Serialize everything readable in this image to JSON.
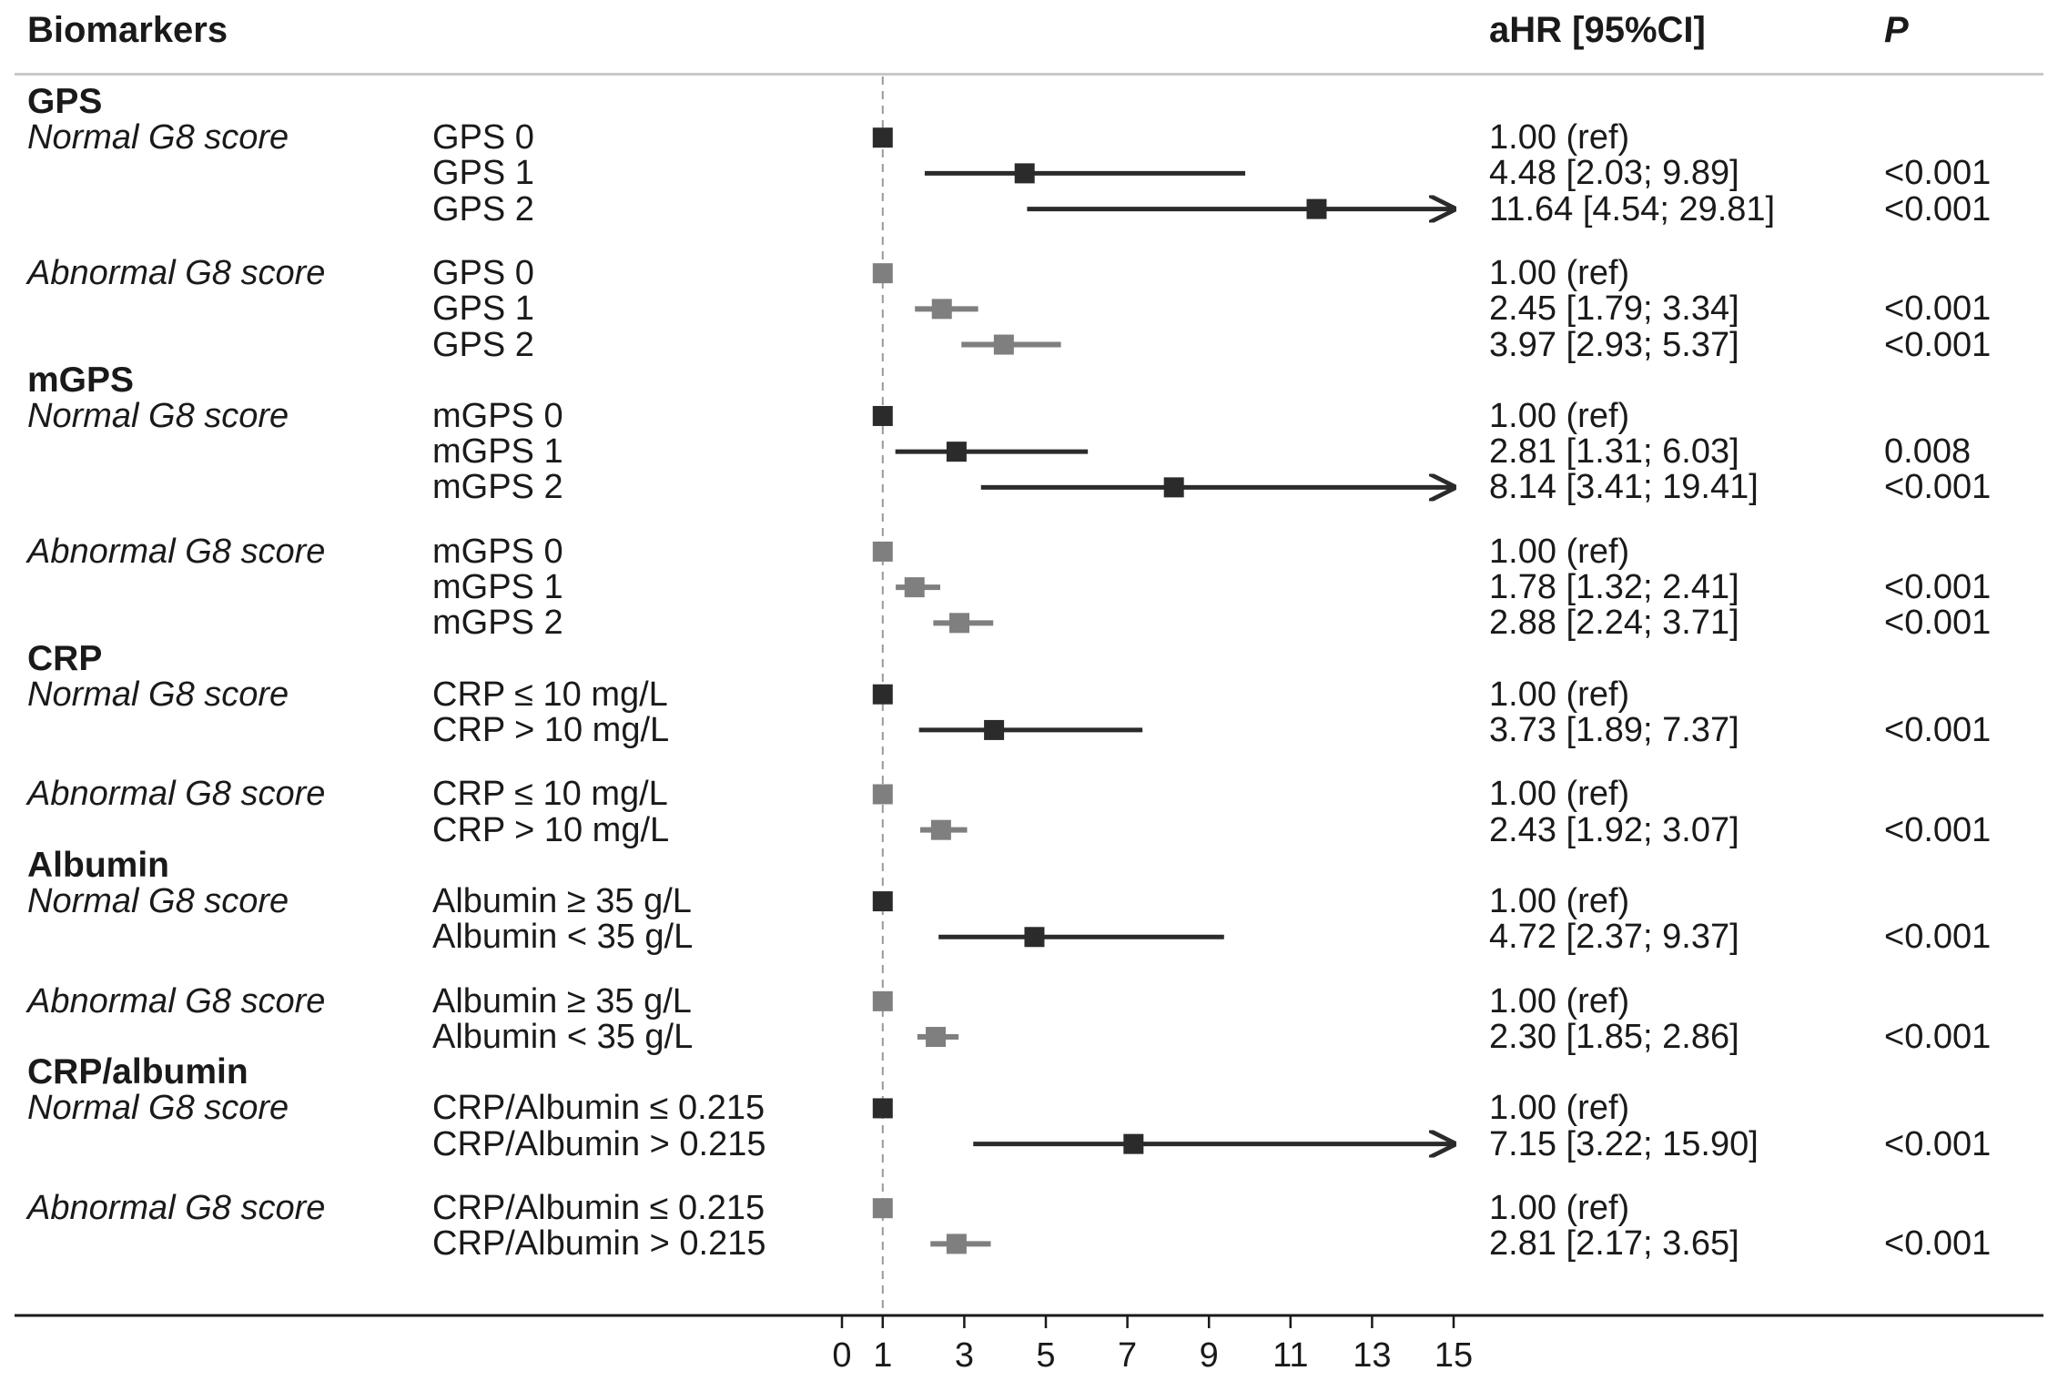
{
  "headers": {
    "biomarkers": "Biomarkers",
    "ahr": "aHR [95%CI]",
    "p": "P"
  },
  "chart_data": {
    "type": "forest",
    "title": "",
    "xlabel": "",
    "xlim": [
      0,
      15
    ],
    "reference_line": 1,
    "xticks": [
      0,
      1,
      3,
      5,
      7,
      9,
      11,
      13,
      15
    ],
    "colors": {
      "normal": "#2b2b2b",
      "abnormal": "#7f7f7f"
    },
    "rows": [
      {
        "section": "GPS"
      },
      {
        "group": "Normal G8 score",
        "level": "GPS 0",
        "hr": 1.0,
        "lo": null,
        "hi": null,
        "label": "1.00 (ref)",
        "p": "",
        "series": "normal"
      },
      {
        "level": "GPS 1",
        "hr": 4.48,
        "lo": 2.03,
        "hi": 9.89,
        "label": "4.48 [2.03; 9.89]",
        "p": "<0.001",
        "series": "normal"
      },
      {
        "level": "GPS 2",
        "hr": 11.64,
        "lo": 4.54,
        "hi": 29.81,
        "label": "11.64 [4.54; 29.81]",
        "p": "<0.001",
        "series": "normal"
      },
      {
        "gap": true
      },
      {
        "group": "Abnormal G8 score",
        "level": "GPS 0",
        "hr": 1.0,
        "lo": null,
        "hi": null,
        "label": "1.00 (ref)",
        "p": "",
        "series": "abnormal"
      },
      {
        "level": "GPS 1",
        "hr": 2.45,
        "lo": 1.79,
        "hi": 3.34,
        "label": "2.45 [1.79; 3.34]",
        "p": "<0.001",
        "series": "abnormal"
      },
      {
        "level": "GPS 2",
        "hr": 3.97,
        "lo": 2.93,
        "hi": 5.37,
        "label": "3.97 [2.93; 5.37]",
        "p": "<0.001",
        "series": "abnormal"
      },
      {
        "section": "mGPS"
      },
      {
        "group": "Normal G8 score",
        "level": "mGPS 0",
        "hr": 1.0,
        "lo": null,
        "hi": null,
        "label": "1.00 (ref)",
        "p": "",
        "series": "normal"
      },
      {
        "level": "mGPS 1",
        "hr": 2.81,
        "lo": 1.31,
        "hi": 6.03,
        "label": "2.81 [1.31; 6.03]",
        "p": "0.008",
        "series": "normal"
      },
      {
        "level": "mGPS 2",
        "hr": 8.14,
        "lo": 3.41,
        "hi": 19.41,
        "label": "8.14 [3.41; 19.41]",
        "p": "<0.001",
        "series": "normal"
      },
      {
        "gap": true
      },
      {
        "group": "Abnormal G8 score",
        "level": "mGPS 0",
        "hr": 1.0,
        "lo": null,
        "hi": null,
        "label": "1.00 (ref)",
        "p": "",
        "series": "abnormal"
      },
      {
        "level": "mGPS 1",
        "hr": 1.78,
        "lo": 1.32,
        "hi": 2.41,
        "label": "1.78 [1.32; 2.41]",
        "p": "<0.001",
        "series": "abnormal"
      },
      {
        "level": "mGPS 2",
        "hr": 2.88,
        "lo": 2.24,
        "hi": 3.71,
        "label": "2.88 [2.24; 3.71]",
        "p": "<0.001",
        "series": "abnormal"
      },
      {
        "section": "CRP"
      },
      {
        "group": "Normal G8 score",
        "level": "CRP ≤ 10 mg/L",
        "hr": 1.0,
        "lo": null,
        "hi": null,
        "label": "1.00 (ref)",
        "p": "",
        "series": "normal"
      },
      {
        "level": "CRP > 10 mg/L",
        "hr": 3.73,
        "lo": 1.89,
        "hi": 7.37,
        "label": "3.73 [1.89; 7.37]",
        "p": "<0.001",
        "series": "normal"
      },
      {
        "gap": true
      },
      {
        "group": "Abnormal G8 score",
        "level": "CRP ≤ 10 mg/L",
        "hr": 1.0,
        "lo": null,
        "hi": null,
        "label": "1.00 (ref)",
        "p": "",
        "series": "abnormal"
      },
      {
        "level": "CRP > 10 mg/L",
        "hr": 2.43,
        "lo": 1.92,
        "hi": 3.07,
        "label": "2.43 [1.92; 3.07]",
        "p": "<0.001",
        "series": "abnormal"
      },
      {
        "section": "Albumin"
      },
      {
        "group": "Normal G8 score",
        "level": "Albumin ≥ 35 g/L",
        "hr": 1.0,
        "lo": null,
        "hi": null,
        "label": "1.00 (ref)",
        "p": "",
        "series": "normal"
      },
      {
        "level": "Albumin < 35 g/L",
        "hr": 4.72,
        "lo": 2.37,
        "hi": 9.37,
        "label": "4.72 [2.37; 9.37]",
        "p": "<0.001",
        "series": "normal"
      },
      {
        "gap": true
      },
      {
        "group": "Abnormal G8 score",
        "level": "Albumin ≥ 35 g/L",
        "hr": 1.0,
        "lo": null,
        "hi": null,
        "label": "1.00 (ref)",
        "p": "",
        "series": "abnormal"
      },
      {
        "level": "Albumin < 35 g/L",
        "hr": 2.3,
        "lo": 1.85,
        "hi": 2.86,
        "label": "2.30 [1.85; 2.86]",
        "p": "<0.001",
        "series": "abnormal"
      },
      {
        "section": "CRP/albumin"
      },
      {
        "group": "Normal G8 score",
        "level": "CRP/Albumin ≤ 0.215",
        "hr": 1.0,
        "lo": null,
        "hi": null,
        "label": "1.00 (ref)",
        "p": "",
        "series": "normal"
      },
      {
        "level": "CRP/Albumin > 0.215",
        "hr": 7.15,
        "lo": 3.22,
        "hi": 15.9,
        "label": "7.15 [3.22; 15.90]",
        "p": "<0.001",
        "series": "normal"
      },
      {
        "gap": true
      },
      {
        "group": "Abnormal G8 score",
        "level": "CRP/Albumin ≤ 0.215",
        "hr": 1.0,
        "lo": null,
        "hi": null,
        "label": "1.00 (ref)",
        "p": "",
        "series": "abnormal"
      },
      {
        "level": "CRP/Albumin > 0.215",
        "hr": 2.81,
        "lo": 2.17,
        "hi": 3.65,
        "label": "2.81 [2.17; 3.65]",
        "p": "<0.001",
        "series": "abnormal"
      }
    ]
  }
}
